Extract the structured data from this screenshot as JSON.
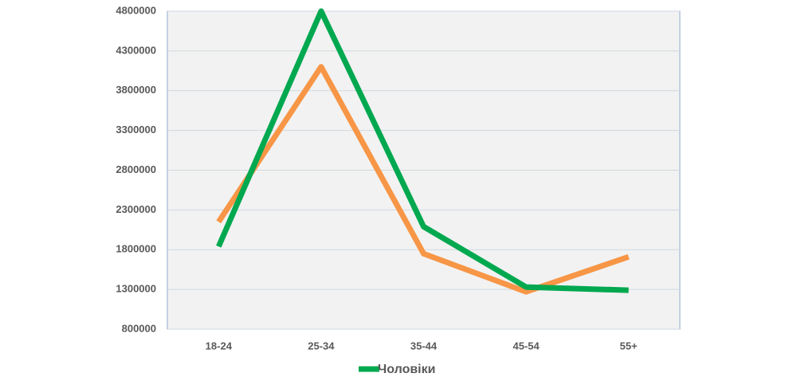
{
  "chart_data": {
    "type": "line",
    "categories": [
      "18-24",
      "25-34",
      "35-44",
      "45-54",
      "55+"
    ],
    "series": [
      {
        "color": "#f79646",
        "values": [
          2150000,
          4100000,
          1750000,
          1270000,
          1710000
        ]
      },
      {
        "name": "Чоловіки",
        "color": "#00a84f",
        "values": [
          1840000,
          4800000,
          2090000,
          1330000,
          1290000
        ]
      }
    ],
    "ylim": [
      800000,
      4800000
    ],
    "yticks": [
      800000,
      1300000,
      1800000,
      2300000,
      2800000,
      3300000,
      3800000,
      4300000,
      4800000
    ],
    "grid": true,
    "legend": "bottom"
  }
}
